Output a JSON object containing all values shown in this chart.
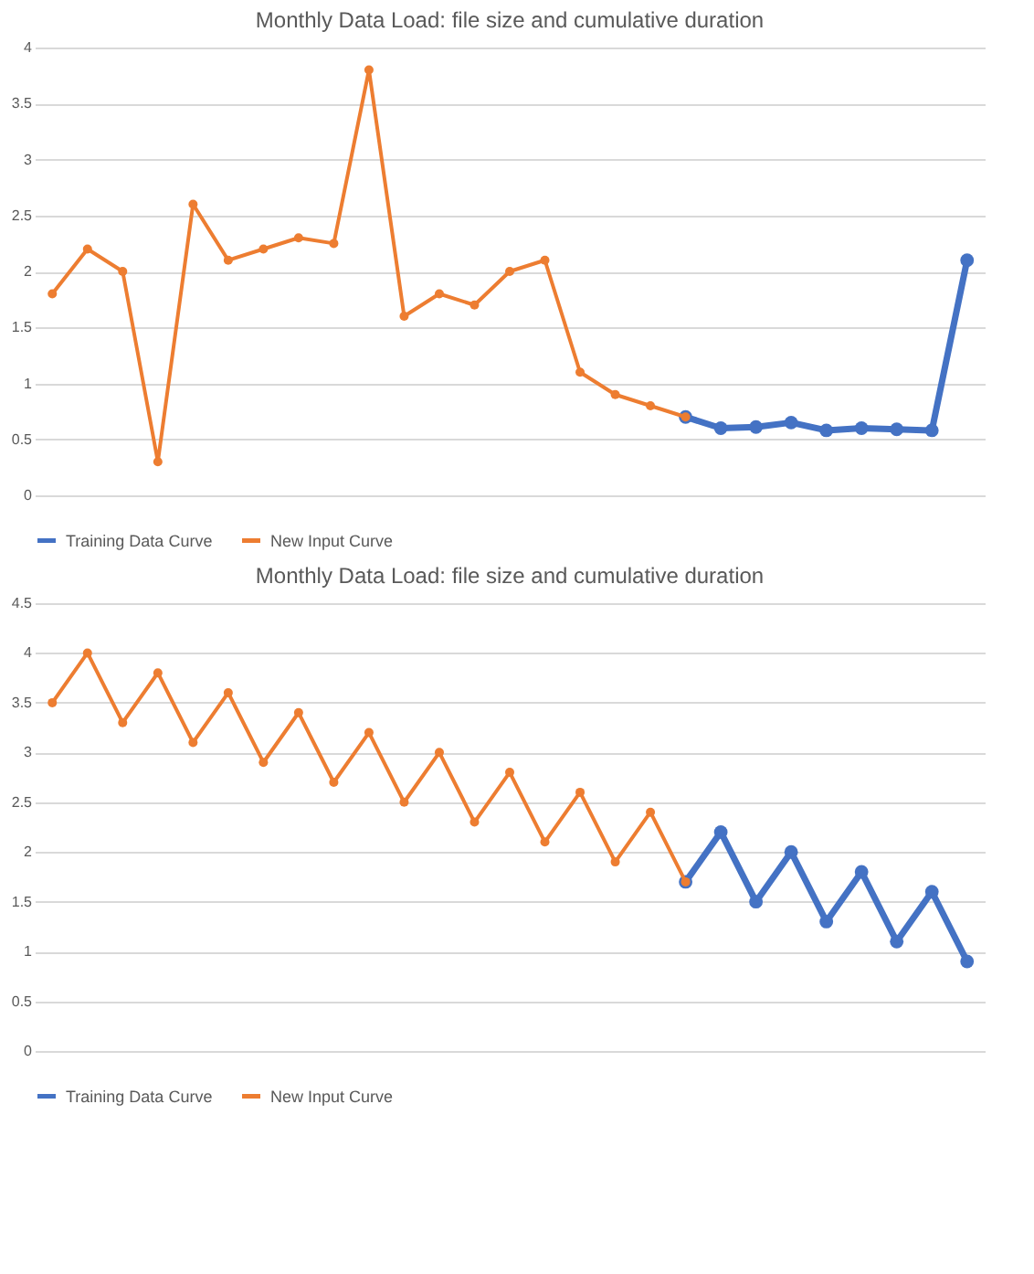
{
  "chart_data": [
    {
      "type": "line",
      "title": "Monthly Data Load: file size and cumulative duration",
      "categories": [
        null,
        null,
        null,
        null,
        null,
        null,
        null,
        null,
        null,
        null,
        null,
        null,
        null,
        null,
        null,
        null,
        null,
        null,
        null,
        null,
        null,
        null,
        null,
        null,
        null,
        null,
        null
      ],
      "series": [
        {
          "name": "Training Data Curve",
          "color": "#4472c4",
          "values": [
            null,
            null,
            null,
            null,
            null,
            null,
            null,
            null,
            null,
            null,
            null,
            null,
            null,
            null,
            null,
            null,
            null,
            null,
            0.7,
            0.6,
            0.61,
            0.65,
            0.58,
            0.6,
            0.59,
            0.58,
            2.1
          ]
        },
        {
          "name": "New Input Curve",
          "color": "#ed7d31",
          "values": [
            1.8,
            2.2,
            2.0,
            0.3,
            2.6,
            2.1,
            2.2,
            2.3,
            2.25,
            3.8,
            1.6,
            1.8,
            1.7,
            2.0,
            2.1,
            1.1,
            0.9,
            0.8,
            0.7,
            null,
            null,
            null,
            null,
            null,
            null,
            null,
            null
          ]
        }
      ],
      "ylim": [
        0,
        4
      ],
      "yticks": [
        0,
        0.5,
        1,
        1.5,
        2,
        2.5,
        3,
        3.5,
        4
      ],
      "grid": "y",
      "legend": "bottom",
      "marker": "circle",
      "line_style": "solid",
      "tick_labels": "y"
    },
    {
      "type": "line",
      "title": "Monthly Data Load: file size and cumulative duration",
      "categories": [
        null,
        null,
        null,
        null,
        null,
        null,
        null,
        null,
        null,
        null,
        null,
        null,
        null,
        null,
        null,
        null,
        null,
        null,
        null,
        null,
        null,
        null,
        null,
        null,
        null,
        null,
        null
      ],
      "series": [
        {
          "name": "Training Data Curve",
          "color": "#4472c4",
          "values": [
            null,
            null,
            null,
            null,
            null,
            null,
            null,
            null,
            null,
            null,
            null,
            null,
            null,
            null,
            null,
            null,
            null,
            null,
            1.7,
            2.2,
            1.5,
            2.0,
            1.3,
            1.8,
            1.1,
            1.6,
            0.9
          ]
        },
        {
          "name": "New Input Curve",
          "color": "#ed7d31",
          "values": [
            3.5,
            4.0,
            3.3,
            3.8,
            3.1,
            3.6,
            2.9,
            3.4,
            2.7,
            3.2,
            2.5,
            3.0,
            2.3,
            2.8,
            2.1,
            2.6,
            1.9,
            2.4,
            1.7,
            null,
            null,
            null,
            null,
            null,
            null,
            null,
            null
          ]
        }
      ],
      "ylim": [
        0,
        4.5
      ],
      "yticks": [
        0,
        0.5,
        1,
        1.5,
        2,
        2.5,
        3,
        3.5,
        4,
        4.5
      ],
      "grid": "y",
      "legend": "bottom",
      "marker": "circle",
      "line_style": "solid",
      "tick_labels": "y"
    }
  ]
}
